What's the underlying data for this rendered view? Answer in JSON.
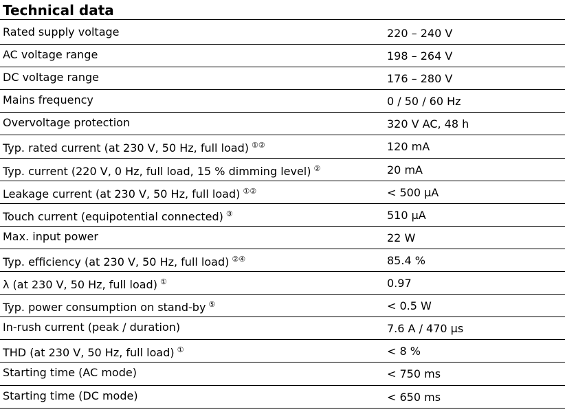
{
  "title": "Technical data",
  "rows": [
    {
      "label": "Rated supply voltage",
      "notes": "",
      "value": "220 – 240 V"
    },
    {
      "label": "AC voltage range",
      "notes": "",
      "value": "198 – 264 V"
    },
    {
      "label": "DC voltage range",
      "notes": "",
      "value": "176 – 280 V"
    },
    {
      "label": "Mains frequency",
      "notes": "",
      "value": "0 / 50 / 60 Hz"
    },
    {
      "label": "Overvoltage protection",
      "notes": "",
      "value": "320 V AC, 48 h"
    },
    {
      "label": "Typ. rated current (at 230 V, 50 Hz, full load)",
      "notes": "①②",
      "value": "120 mA"
    },
    {
      "label": "Typ. current (220 V, 0 Hz, full load, 15 % dimming level)",
      "notes": "②",
      "value": "20 mA"
    },
    {
      "label": "Leakage current (at 230 V, 50 Hz, full load)",
      "notes": "①②",
      "value": "< 500 µA"
    },
    {
      "label": "Touch current (equipotential connected)",
      "notes": "③",
      "value": "510 µA"
    },
    {
      "label": "Max. input power",
      "notes": "",
      "value": "22 W"
    },
    {
      "label": "Typ. efficiency (at 230 V, 50 Hz, full load)",
      "notes": "②④",
      "value": "85.4 %"
    },
    {
      "label": "λ (at 230 V, 50 Hz, full load)",
      "notes": "①",
      "value": "0.97"
    },
    {
      "label": "Typ. power consumption on stand-by",
      "notes": "⑤",
      "value": "< 0.5 W"
    },
    {
      "label": "In-rush current (peak / duration)",
      "notes": "",
      "value": "7.6 A / 470 µs"
    },
    {
      "label": "THD (at 230 V, 50 Hz, full load)",
      "notes": "①",
      "value": "< 8 %"
    },
    {
      "label": "Starting time (AC mode)",
      "notes": "",
      "value": "< 750 ms"
    },
    {
      "label": "Starting time (DC mode)",
      "notes": "",
      "value": "< 650 ms"
    }
  ]
}
